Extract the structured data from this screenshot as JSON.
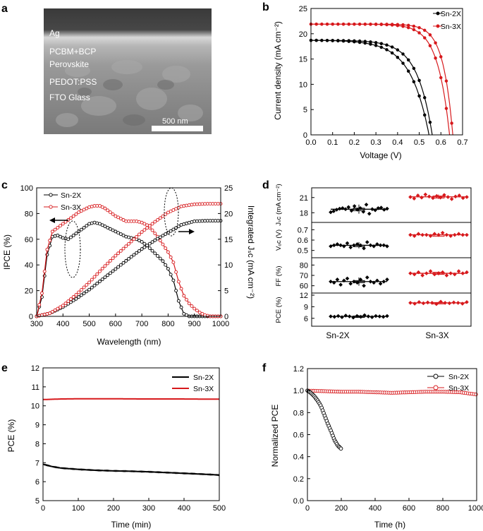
{
  "colors": {
    "sn2x": "#000000",
    "sn3x": "#d7191c",
    "sem_bg": "#7d7d7d"
  },
  "panel_a": {
    "panel_label": "a",
    "layers": [
      "Ag",
      "PCBM+BCP",
      "Perovskite",
      "PEDOT:PSS",
      "FTO Glass"
    ],
    "scale_bar": "500 nm"
  },
  "panel_b": {
    "panel_label": "b",
    "xlabel": "Voltage (V)",
    "ylabel": "Current density (mA cm⁻²)",
    "xticks": [
      "0.0",
      "0.1",
      "0.2",
      "0.3",
      "0.4",
      "0.5",
      "0.6",
      "0.7"
    ],
    "yticks": [
      "0",
      "5",
      "10",
      "15",
      "20",
      "25"
    ],
    "legend": [
      "Sn-2X",
      "Sn-3X"
    ]
  },
  "panel_c": {
    "panel_label": "c",
    "xlabel": "Wavelength (nm)",
    "ylabel_left": "IPCE (%)",
    "ylabel_right": "Integrated Jₛc (mA cm⁻²)",
    "xticks": [
      "300",
      "400",
      "500",
      "600",
      "700",
      "800",
      "900",
      "1000"
    ],
    "yticks_left": [
      "0",
      "20",
      "40",
      "60",
      "80",
      "100"
    ],
    "yticks_right": [
      "0",
      "5",
      "10",
      "15",
      "20",
      "25"
    ],
    "legend": [
      "Sn-2X",
      "Sn-3X"
    ]
  },
  "panel_d": {
    "panel_label": "d",
    "row_labels": [
      "Jₛc (mA cm⁻²)",
      "Vₒc (V)",
      "FF (%)",
      "PCE (%)"
    ],
    "row_ticks": [
      [
        "18",
        "21"
      ],
      [
        "0.5",
        "0.6",
        "0.7"
      ],
      [
        "60",
        "70",
        "80"
      ],
      [
        "6",
        "9",
        "12"
      ]
    ],
    "groups": [
      "Sn-2X",
      "Sn-3X"
    ]
  },
  "panel_e": {
    "panel_label": "e",
    "xlabel": "Time (min)",
    "ylabel": "PCE (%)",
    "xticks": [
      "0",
      "100",
      "200",
      "300",
      "400",
      "500"
    ],
    "yticks": [
      "5",
      "6",
      "7",
      "8",
      "9",
      "10",
      "11",
      "12"
    ],
    "legend": [
      "Sn-2X",
      "Sn-3X"
    ]
  },
  "panel_f": {
    "panel_label": "f",
    "xlabel": "Time (h)",
    "ylabel": "Normalized PCE",
    "xticks": [
      "0",
      "200",
      "400",
      "600",
      "800",
      "1000"
    ],
    "yticks": [
      "0.0",
      "0.2",
      "0.4",
      "0.6",
      "0.8",
      "1.0",
      "1.2"
    ],
    "legend": [
      "Sn-2X",
      "Sn-3X"
    ]
  },
  "chart_data": [
    {
      "panel": "b",
      "type": "line",
      "xlabel": "Voltage (V)",
      "ylabel": "Current density (mA cm-2)",
      "xlim": [
        0,
        0.7
      ],
      "ylim": [
        0,
        25
      ],
      "series": [
        {
          "name": "Sn-2X",
          "color": "#000000",
          "jsc": 18.7,
          "curves": [
            {
              "voc": 0.56,
              "n": 0.07
            },
            {
              "voc": 0.545,
              "n": 0.085
            }
          ]
        },
        {
          "name": "Sn-3X",
          "color": "#d7191c",
          "jsc": 21.9,
          "curves": [
            {
              "voc": 0.655,
              "n": 0.045
            },
            {
              "voc": 0.64,
              "n": 0.055
            }
          ]
        }
      ]
    },
    {
      "panel": "c",
      "type": "line",
      "xlabel": "Wavelength (nm)",
      "xlim": [
        300,
        1000
      ],
      "ylabel_left": "IPCE (%)",
      "ylim_left": [
        0,
        100
      ],
      "ylabel_right": "Integrated Jsc (mA cm-2)",
      "ylim_right": [
        0,
        25
      ],
      "series": [
        {
          "name": "Sn-2X",
          "axis": "left",
          "color": "#000000",
          "x": [
            300,
            320,
            340,
            360,
            380,
            400,
            420,
            440,
            460,
            480,
            500,
            520,
            540,
            560,
            580,
            600,
            620,
            640,
            660,
            680,
            700,
            720,
            740,
            760,
            780,
            800,
            820,
            840,
            860,
            880,
            900,
            920,
            940,
            960,
            980,
            1000
          ],
          "y": [
            0,
            15,
            48,
            62,
            63,
            61,
            60,
            63,
            66,
            69,
            72,
            73,
            72,
            70,
            68,
            66,
            64,
            62,
            61,
            60,
            58,
            55,
            51,
            47,
            43,
            37,
            28,
            12,
            2,
            0,
            0,
            0,
            0,
            0,
            0,
            0
          ]
        },
        {
          "name": "Sn-3X",
          "axis": "left",
          "color": "#d7191c",
          "x": [
            300,
            320,
            340,
            360,
            380,
            400,
            420,
            440,
            460,
            480,
            500,
            520,
            540,
            560,
            580,
            600,
            620,
            640,
            660,
            680,
            700,
            720,
            740,
            760,
            780,
            800,
            820,
            840,
            860,
            880,
            900,
            920,
            940,
            960,
            980,
            1000
          ],
          "y": [
            0,
            18,
            52,
            66,
            69,
            72,
            75,
            78,
            81,
            83,
            85,
            86,
            86,
            84,
            81,
            78,
            76,
            74,
            74,
            74,
            73,
            71,
            67,
            62,
            56,
            50,
            42,
            27,
            16,
            10,
            6,
            3,
            1,
            0,
            0,
            0
          ]
        },
        {
          "name": "Sn-2X",
          "axis": "right",
          "color": "#000000",
          "x": [
            300,
            350,
            400,
            450,
            500,
            550,
            600,
            650,
            700,
            750,
            800,
            850,
            900,
            950,
            1000
          ],
          "y": [
            0,
            0.6,
            1.8,
            3.4,
            5.2,
            7.2,
            9.2,
            11.2,
            13.1,
            14.8,
            16.3,
            17.8,
            18.5,
            18.6,
            18.6
          ]
        },
        {
          "name": "Sn-3X",
          "axis": "right",
          "color": "#d7191c",
          "x": [
            300,
            350,
            400,
            450,
            500,
            550,
            600,
            650,
            700,
            750,
            800,
            850,
            900,
            950,
            1000
          ],
          "y": [
            0,
            0.6,
            2.1,
            4.2,
            6.6,
            9.3,
            11.8,
            14.1,
            16.4,
            18.4,
            20.2,
            21.4,
            21.8,
            21.9,
            21.9
          ]
        }
      ]
    },
    {
      "panel": "d",
      "type": "scatter",
      "groups": [
        "Sn-2X",
        "Sn-3X"
      ],
      "rows": [
        {
          "label": "Jsc (mA cm-2)",
          "ylim": [
            16.5,
            22.5
          ],
          "sn2x": [
            18.1,
            18.3,
            18.6,
            18.8,
            18.9,
            18.7,
            19.1,
            18.4,
            19.3,
            18.6,
            18.9,
            18.2,
            19.6,
            17.8,
            18.7,
            18.5,
            18.9,
            19.0,
            18.6,
            18.8
          ],
          "sn3x": [
            21.1,
            20.8,
            21.4,
            21.0,
            21.6,
            21.2,
            20.9,
            21.3,
            21.0,
            21.5,
            21.1,
            20.7,
            21.2,
            21.4,
            20.9,
            21.1
          ]
        },
        {
          "label": "Voc (V)",
          "ylim": [
            0.45,
            0.75
          ],
          "sn2x": [
            0.54,
            0.55,
            0.56,
            0.55,
            0.54,
            0.57,
            0.53,
            0.55,
            0.56,
            0.55,
            0.52,
            0.58,
            0.55,
            0.54,
            0.56,
            0.55,
            0.55,
            0.54
          ],
          "sn3x": [
            0.65,
            0.64,
            0.66,
            0.65,
            0.65,
            0.64,
            0.66,
            0.65,
            0.67,
            0.65,
            0.64,
            0.65,
            0.66,
            0.65,
            0.65
          ]
        },
        {
          "label": "FF (%)",
          "ylim": [
            55,
            85
          ],
          "sn2x": [
            64,
            63,
            66,
            61,
            65,
            67,
            62,
            64,
            63,
            66,
            60,
            68,
            64,
            63,
            65,
            62,
            64,
            66
          ],
          "sn3x": [
            72,
            71,
            73,
            70,
            72,
            74,
            71,
            72,
            73,
            70,
            72,
            71,
            74,
            72,
            73
          ]
        },
        {
          "label": "PCE (%)",
          "ylim": [
            4.5,
            12
          ],
          "sn2x": [
            6.5,
            6.4,
            6.6,
            6.3,
            6.7,
            6.5,
            6.2,
            6.6,
            6.4,
            6.8,
            6.5,
            6.3,
            6.6,
            6.5,
            6.4,
            6.6
          ],
          "sn3x": [
            10.0,
            9.8,
            10.2,
            9.9,
            10.1,
            10.0,
            9.7,
            10.3,
            10.0,
            9.9,
            10.1,
            10.0,
            9.8,
            10.2
          ]
        }
      ]
    },
    {
      "panel": "e",
      "type": "line",
      "xlabel": "Time (min)",
      "ylabel": "PCE (%)",
      "xlim": [
        0,
        500
      ],
      "ylim": [
        5,
        12
      ],
      "series": [
        {
          "name": "Sn-2X",
          "color": "#000000",
          "x": [
            0,
            25,
            50,
            100,
            150,
            200,
            250,
            300,
            350,
            400,
            450,
            500
          ],
          "y": [
            6.92,
            6.8,
            6.72,
            6.65,
            6.6,
            6.57,
            6.55,
            6.52,
            6.48,
            6.44,
            6.4,
            6.35
          ]
        },
        {
          "name": "Sn-3X",
          "color": "#d7191c",
          "x": [
            0,
            50,
            100,
            200,
            300,
            400,
            500
          ],
          "y": [
            10.33,
            10.36,
            10.37,
            10.37,
            10.36,
            10.36,
            10.35
          ]
        }
      ]
    },
    {
      "panel": "f",
      "type": "scatter",
      "xlabel": "Time (h)",
      "ylabel": "Normalized PCE",
      "xlim": [
        0,
        1000
      ],
      "ylim": [
        0,
        1.2
      ],
      "series": [
        {
          "name": "Sn-2X",
          "color": "#000000",
          "x": [
            0,
            20,
            40,
            60,
            80,
            100,
            120,
            140,
            160,
            180,
            200
          ],
          "y": [
            1.0,
            0.98,
            0.95,
            0.91,
            0.86,
            0.78,
            0.7,
            0.63,
            0.55,
            0.5,
            0.47
          ]
        },
        {
          "name": "Sn-3X",
          "color": "#d7191c",
          "x": [
            0,
            100,
            200,
            300,
            400,
            500,
            600,
            700,
            800,
            900,
            950,
            1000
          ],
          "y": [
            1.0,
            0.995,
            0.99,
            0.99,
            0.985,
            0.98,
            0.985,
            0.99,
            0.99,
            0.985,
            0.975,
            0.965
          ]
        }
      ]
    }
  ]
}
